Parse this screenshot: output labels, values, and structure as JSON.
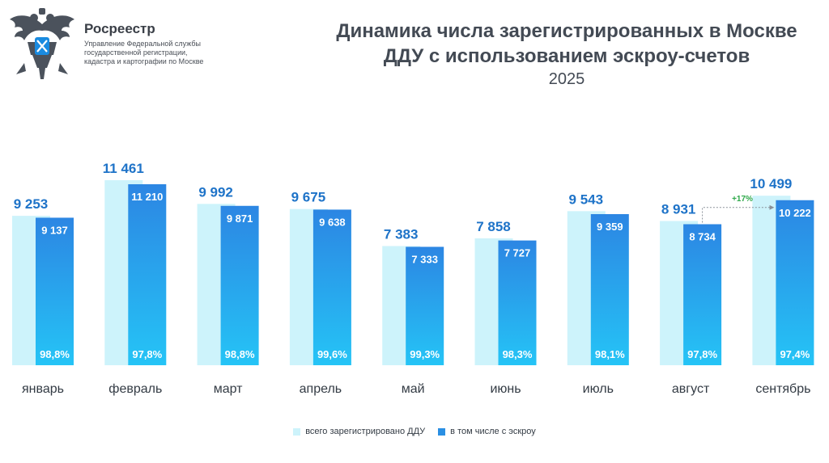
{
  "header": {
    "org_name": "Росреестр",
    "org_sub": [
      "Управление Федеральной службы",
      "государственной регистрации,",
      "кадастра и картографии по Москве"
    ],
    "title_line1": "Динамика числа зарегистрированных в Москве",
    "title_line2": "ДДУ с использованием эскроу-счетов",
    "subtitle": "2025"
  },
  "colors": {
    "total_bar": "#cdf3fb",
    "escrow_bar_top": "#2c86e3",
    "escrow_bar_bottom": "#25c4f6",
    "total_label": "#1e73c8",
    "escrow_label": "#ffffff",
    "growth_label": "#2ea84a",
    "axis_label": "#333b44"
  },
  "chart_data": {
    "type": "bar",
    "title": "Динамика числа зарегистрированных в Москве ДДУ с использованием эскроу-счетов",
    "subtitle": "2025",
    "categories": [
      "январь",
      "февраль",
      "март",
      "апрель",
      "май",
      "июнь",
      "июль",
      "август",
      "сентябрь"
    ],
    "series": [
      {
        "name": "всего зарегистрировано ДДУ",
        "values": [
          9253,
          11461,
          9992,
          9675,
          7383,
          7858,
          9543,
          8931,
          10499
        ],
        "labels": [
          "9 253",
          "11 461",
          "9 992",
          "9 675",
          "7 383",
          "7 858",
          "9 543",
          "8 931",
          "10 499"
        ]
      },
      {
        "name": "в том числе с эскроу",
        "values": [
          9137,
          11210,
          9871,
          9638,
          7333,
          7727,
          9359,
          8734,
          10222
        ],
        "labels": [
          "9 137",
          "11 210",
          "9 871",
          "9 638",
          "7 333",
          "7 727",
          "9 359",
          "8 734",
          "10 222"
        ]
      }
    ],
    "shares": [
      "98,8%",
      "97,8%",
      "98,8%",
      "99,6%",
      "99,3%",
      "98,3%",
      "98,1%",
      "97,8%",
      "97,4%"
    ],
    "annotation": {
      "text": "+17%",
      "from": "август",
      "to": "сентябрь",
      "series": "в том числе с эскроу"
    },
    "ylim": [
      0,
      12000
    ],
    "grid": false,
    "legend": "bottom-center"
  },
  "legend": {
    "total_label": "всего зарегистрировано ДДУ",
    "escrow_label": "в том числе с эскроу"
  }
}
